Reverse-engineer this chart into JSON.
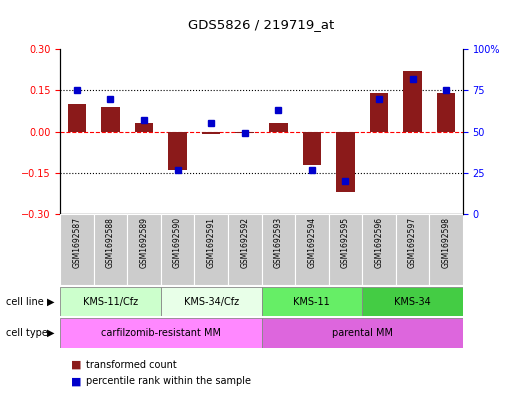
{
  "title": "GDS5826 / 219719_at",
  "samples": [
    "GSM1692587",
    "GSM1692588",
    "GSM1692589",
    "GSM1692590",
    "GSM1692591",
    "GSM1692592",
    "GSM1692593",
    "GSM1692594",
    "GSM1692595",
    "GSM1692596",
    "GSM1692597",
    "GSM1692598"
  ],
  "transformed_count": [
    0.1,
    0.09,
    0.03,
    -0.14,
    -0.01,
    -0.005,
    0.03,
    -0.12,
    -0.22,
    0.14,
    0.22,
    0.14
  ],
  "percentile_rank": [
    75,
    70,
    57,
    27,
    55,
    49,
    63,
    27,
    20,
    70,
    82,
    75
  ],
  "cell_line_groups": [
    {
      "label": "KMS-11/Cfz",
      "start": 0,
      "end": 3,
      "color": "#ccffcc"
    },
    {
      "label": "KMS-34/Cfz",
      "start": 3,
      "end": 6,
      "color": "#e8ffe8"
    },
    {
      "label": "KMS-11",
      "start": 6,
      "end": 9,
      "color": "#66ee66"
    },
    {
      "label": "KMS-34",
      "start": 9,
      "end": 12,
      "color": "#44cc44"
    }
  ],
  "cell_type_groups": [
    {
      "label": "carfilzomib-resistant MM",
      "start": 0,
      "end": 6,
      "color": "#ff88ff"
    },
    {
      "label": "parental MM",
      "start": 6,
      "end": 12,
      "color": "#dd66dd"
    }
  ],
  "bar_color": "#8B1A1A",
  "dot_color": "#0000CC",
  "ylim": [
    -0.3,
    0.3
  ],
  "y2lim": [
    0,
    100
  ],
  "yticks": [
    -0.3,
    -0.15,
    0.0,
    0.15,
    0.3
  ],
  "y2ticks": [
    0,
    25,
    50,
    75,
    100
  ],
  "legend_items": [
    {
      "label": "transformed count",
      "color": "#8B1A1A"
    },
    {
      "label": "percentile rank within the sample",
      "color": "#0000CC"
    }
  ]
}
